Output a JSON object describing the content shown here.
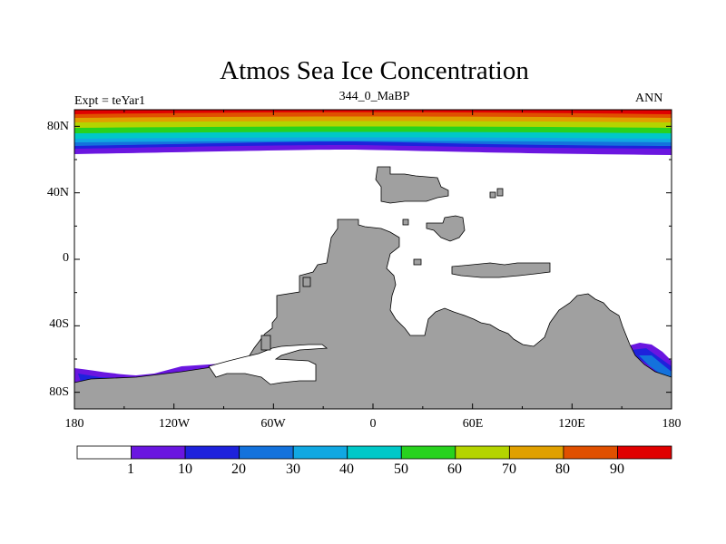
{
  "title": "Atmos Sea Ice Concentration",
  "experiment": "Expt = teYar1",
  "run_label": "344_0_MaBP",
  "season": "ANN",
  "map": {
    "projection": "cylindrical equidistant",
    "lon_range": [
      -180,
      180
    ],
    "lat_range": [
      -90,
      90
    ],
    "lat_ticks": [
      {
        "value": 80,
        "label": "80N"
      },
      {
        "value": 40,
        "label": "40N"
      },
      {
        "value": 0,
        "label": "0"
      },
      {
        "value": -40,
        "label": "40S"
      },
      {
        "value": -80,
        "label": "80S"
      }
    ],
    "lon_ticks": [
      {
        "value": -180,
        "label": "180"
      },
      {
        "value": -120,
        "label": "120W"
      },
      {
        "value": -60,
        "label": "60W"
      },
      {
        "value": 0,
        "label": "0"
      },
      {
        "value": 60,
        "label": "60E"
      },
      {
        "value": 120,
        "label": "120E"
      },
      {
        "value": 180,
        "label": "180"
      }
    ],
    "land_color": "#a0a0a0"
  },
  "colorbar": {
    "colors": [
      "#ffffff",
      "#6a16e0",
      "#1e22dc",
      "#1472dc",
      "#11a8e2",
      "#00c8c8",
      "#28d21e",
      "#b4d400",
      "#e0a000",
      "#e05000",
      "#e00000"
    ],
    "labels": [
      "1",
      "10",
      "20",
      "30",
      "40",
      "50",
      "60",
      "70",
      "80",
      "90"
    ]
  }
}
